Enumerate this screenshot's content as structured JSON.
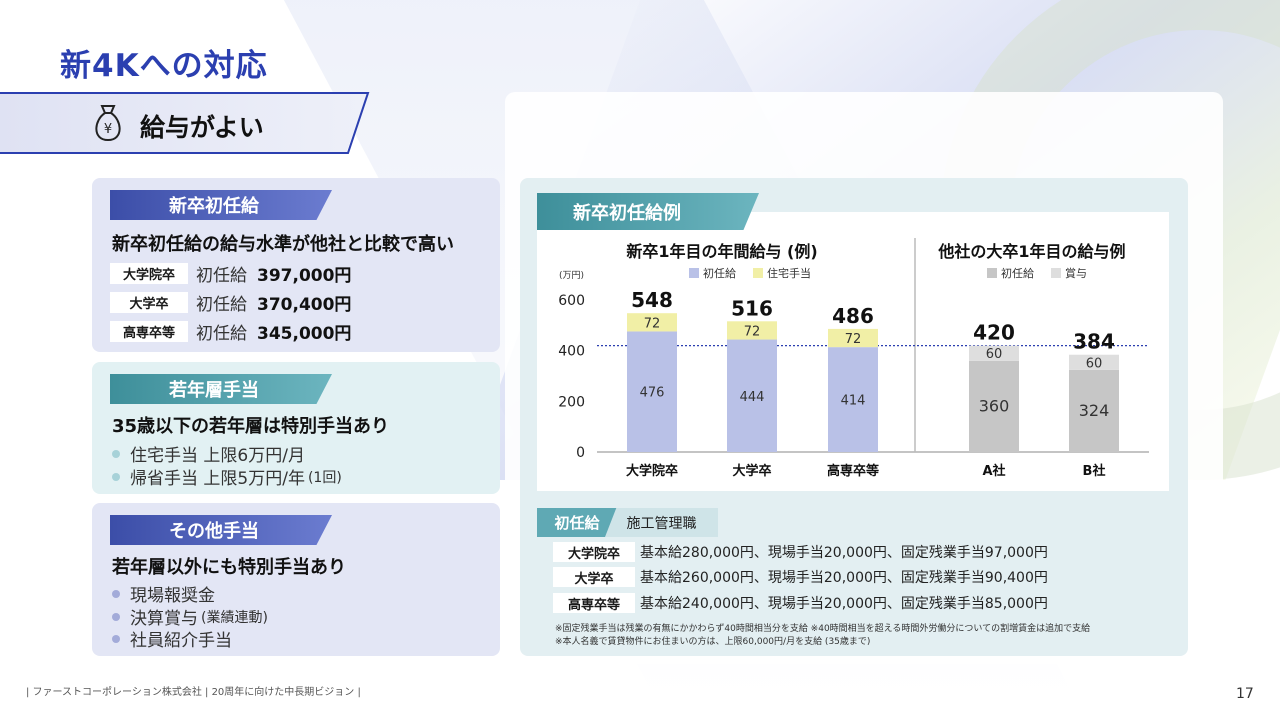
{
  "page": {
    "title": "新4Kへの対応",
    "number": "17"
  },
  "banner": {
    "text": "給与がよい",
    "icon": "money-bag-yen-icon"
  },
  "card1": {
    "tag": "新卒初任給",
    "lead": "新卒初任給の給与水準が他社と比較で高い",
    "rows": [
      {
        "label": "大学院卒",
        "kind": "初任給",
        "amount": "397,000円"
      },
      {
        "label": "大学卒",
        "kind": "初任給",
        "amount": "370,400円"
      },
      {
        "label": "高専卒等",
        "kind": "初任給",
        "amount": "345,000円"
      }
    ]
  },
  "card2": {
    "tag": "若年層手当",
    "lead": "35歳以下の若年層は特別手当あり",
    "items": [
      {
        "text": "住宅手当 上限6万円/月",
        "paren": ""
      },
      {
        "text": "帰省手当 上限5万円/年",
        "paren": "(1回)"
      }
    ]
  },
  "card3": {
    "tag": "その他手当",
    "lead": "若年層以外にも特別手当あり",
    "items": [
      {
        "text": "現場報奨金",
        "paren": ""
      },
      {
        "text": "決算賞与",
        "paren": "(業績連動)"
      },
      {
        "text": "社員紹介手当",
        "paren": ""
      }
    ]
  },
  "chart_panel": {
    "tag": "新卒初任給例"
  },
  "chart_data": [
    {
      "type": "bar",
      "title": "新卒1年目の年間給与",
      "title_suffix": "(例)",
      "unit_label": "(万円)",
      "categories": [
        "大学院卒",
        "大学卒",
        "高専卒等"
      ],
      "series": [
        {
          "name": "初任給",
          "values": [
            476,
            444,
            414
          ],
          "color": "#b9c1e7"
        },
        {
          "name": "住宅手当",
          "values": [
            72,
            72,
            72
          ],
          "color": "#f1efa6"
        }
      ],
      "totals": [
        548,
        516,
        486
      ],
      "y_ticks": [
        "0",
        "200",
        "400",
        "600"
      ],
      "ylim": [
        0,
        600
      ],
      "reference_line": 420,
      "stacked": true
    },
    {
      "type": "bar",
      "title": "他社の大卒1年目の給与例",
      "categories": [
        "A社",
        "B社"
      ],
      "series": [
        {
          "name": "初任給",
          "values": [
            360,
            324
          ],
          "color": "#c6c6c6"
        },
        {
          "name": "賞与",
          "values": [
            60,
            60
          ],
          "color": "#dedede"
        }
      ],
      "totals": [
        420,
        384
      ],
      "ylim": [
        0,
        600
      ],
      "stacked": true
    }
  ],
  "detail": {
    "tag1": "初任給",
    "tag2": "施工管理職",
    "rows": [
      {
        "label": "大学院卒",
        "text": "基本給280,000円、現場手当20,000円、固定残業手当97,000円"
      },
      {
        "label": "大学卒",
        "text": "基本給260,000円、現場手当20,000円、固定残業手当90,400円"
      },
      {
        "label": "高専卒等",
        "text": "基本給240,000円、現場手当20,000円、固定残業手当85,000円"
      }
    ],
    "notes": [
      "※固定残業手当は残業の有無にかかわらず40時間相当分を支給 ※40時間相当を超える時間外労働分についての割増賃金は追加で支給",
      "※本人名義で賃貸物件にお住まいの方は、上限60,000円/月を支給 (35歳まで)"
    ]
  },
  "footer": {
    "text": "| ファーストコーポレーション株式会社 | 20周年に向けた中長期ビジョン |"
  },
  "colors": {
    "title": "#2b3fb0",
    "tag_blue": "#3c4ea8",
    "tag_teal": "#3e8f9a",
    "ref_line": "#2b3fb0"
  }
}
